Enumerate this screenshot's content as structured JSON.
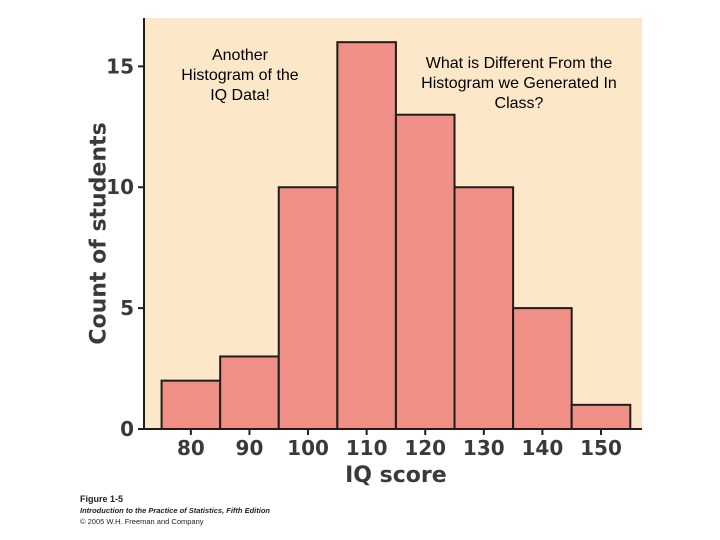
{
  "chart_data": {
    "type": "bar",
    "title": "",
    "xlabel": "IQ score",
    "ylabel": "Count of students",
    "categories": [
      "75-85",
      "85-95",
      "95-105",
      "105-115",
      "115-125",
      "125-135",
      "135-145",
      "145-155"
    ],
    "bin_edges": [
      75,
      85,
      95,
      105,
      115,
      125,
      135,
      145,
      155
    ],
    "values": [
      2,
      3,
      10,
      16,
      13,
      10,
      5,
      1
    ],
    "x_ticks": [
      80,
      90,
      100,
      110,
      120,
      130,
      140,
      150
    ],
    "y_ticks": [
      0,
      5,
      10,
      15
    ],
    "xlim": [
      72,
      157
    ],
    "ylim": [
      0,
      17
    ],
    "grid": false,
    "bar_color": "#ef8f86",
    "bar_edge_color": "#1e1e1e",
    "plot_background": "#fce8c8"
  },
  "annotations": {
    "left": "Another Histogram of the IQ Data!",
    "right": "What is Different From the Histogram we Generated In Class?"
  },
  "caption": {
    "figure": "Figure 1-5",
    "book_title": "Introduction to the Practice of Statistics, Fifth Edition",
    "copyright": "© 2005 W.H. Freeman and Company"
  }
}
